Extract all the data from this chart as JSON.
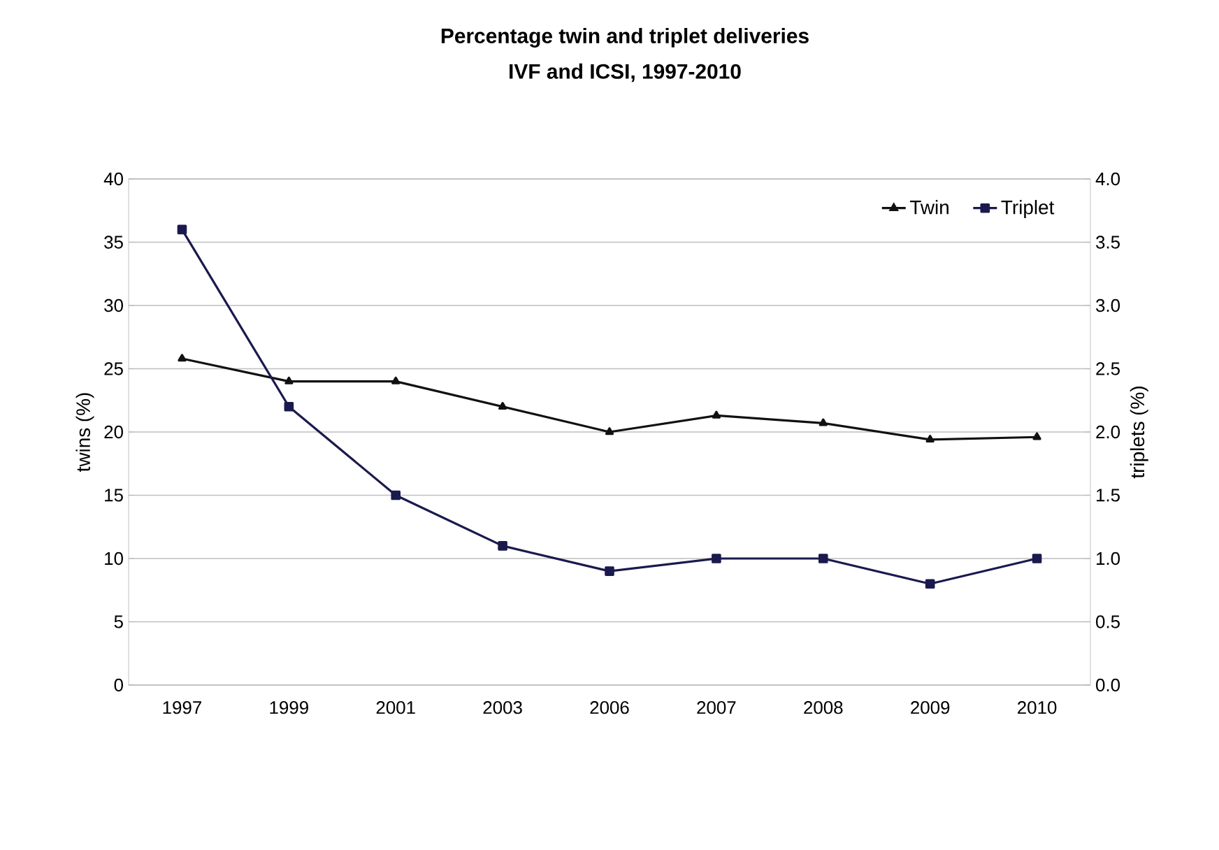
{
  "chart_data": {
    "type": "line",
    "title": "Percentage twin and triplet deliveries",
    "subtitle": "IVF and ICSI, 1997-2010",
    "ylabel": "twins (%)",
    "y2label": "triplets (%)",
    "categories": [
      "1997",
      "1999",
      "2001",
      "2003",
      "2006",
      "2007",
      "2008",
      "2009",
      "2010"
    ],
    "series": [
      {
        "name": "Twin",
        "color": "#111111",
        "marker": "triangle",
        "values": [
          25.8,
          24,
          24,
          22,
          20,
          21.3,
          20.7,
          19.4,
          19.6
        ]
      },
      {
        "name": "Triplet",
        "color": "#1a1a4e",
        "marker": "square",
        "axis": "y2",
        "values": [
          3.6,
          2.2,
          1.5,
          1.1,
          0.9,
          1.0,
          1.0,
          0.8,
          1.0
        ]
      }
    ],
    "ylim": [
      0,
      40
    ],
    "yticks": [
      0,
      5,
      10,
      15,
      20,
      25,
      30,
      35,
      40
    ],
    "y2lim": [
      0,
      4
    ],
    "y2ticks": [
      {
        "value": 0,
        "label": "0.0"
      },
      {
        "value": 0.5,
        "label": "0.5"
      },
      {
        "value": 1,
        "label": "1.0"
      },
      {
        "value": 1.5,
        "label": "1.5"
      },
      {
        "value": 2,
        "label": "2.0"
      },
      {
        "value": 2.5,
        "label": "2.5"
      },
      {
        "value": 3,
        "label": "3.0"
      },
      {
        "value": 3.5,
        "label": "3.5"
      },
      {
        "value": 4,
        "label": "4.0"
      }
    ],
    "grid": "y",
    "legend": "top right",
    "line_style": "solid"
  }
}
